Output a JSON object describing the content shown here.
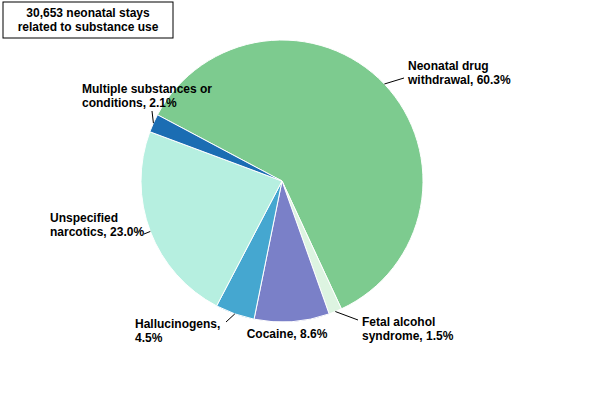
{
  "chart_data": {
    "type": "pie",
    "title": "30,653 neonatal stays related to substance use",
    "categories": [
      "Neonatal drug withdrawal",
      "Fetal alcohol syndrome",
      "Cocaine",
      "Hallucinogens",
      "Unspecified narcotics",
      "Multiple substances or conditions"
    ],
    "values": [
      60.3,
      1.5,
      8.6,
      4.5,
      23.0,
      2.1
    ],
    "value_labels": [
      "60.3%",
      "1.5%",
      "8.6%",
      "4.5%",
      "23.0%",
      "2.1%"
    ],
    "colors": [
      "#7dcb8f",
      "#ddf4e1",
      "#7a80c8",
      "#45a7d0",
      "#b6efe0",
      "#1b6db3"
    ],
    "data_labels": true
  }
}
